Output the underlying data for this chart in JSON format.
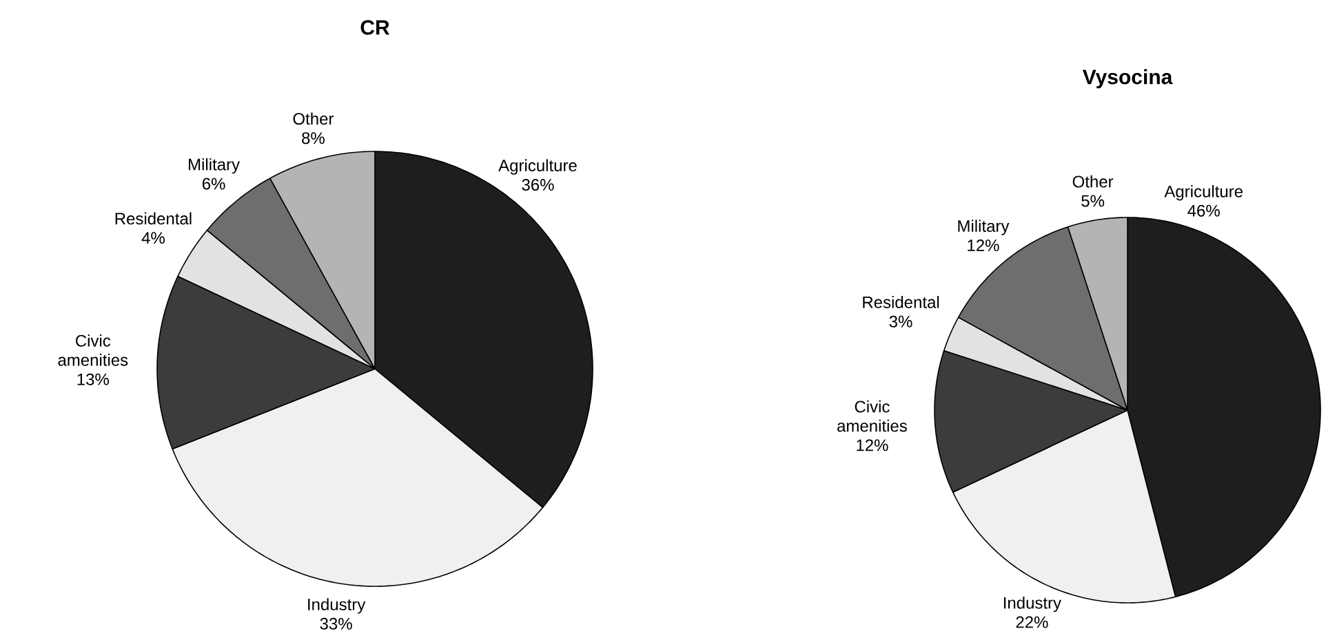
{
  "chart_data": [
    {
      "type": "pie",
      "title": "CR",
      "categories": [
        "Agriculture",
        "Industry",
        "Civic amenities",
        "Residental",
        "Military",
        "Other"
      ],
      "values": [
        36,
        33,
        13,
        4,
        6,
        8
      ],
      "value_labels": [
        "36%",
        "33%",
        "13%",
        "4%",
        "6%",
        "8%"
      ],
      "colors": [
        "#1e1e1e",
        "#f0f0f0",
        "#3c3c3c",
        "#e2e2e2",
        "#6e6e6e",
        "#b4b4b4"
      ]
    },
    {
      "type": "pie",
      "title": "Vysocina",
      "categories": [
        "Agriculture",
        "Industry",
        "Civic amenities",
        "Residental",
        "Military",
        "Other"
      ],
      "values": [
        46,
        22,
        12,
        3,
        12,
        5
      ],
      "value_labels": [
        "46%",
        "22%",
        "12%",
        "3%",
        "12%",
        "5%"
      ],
      "colors": [
        "#1e1e1e",
        "#f0f0f0",
        "#3c3c3c",
        "#e2e2e2",
        "#6e6e6e",
        "#b4b4b4"
      ]
    }
  ]
}
